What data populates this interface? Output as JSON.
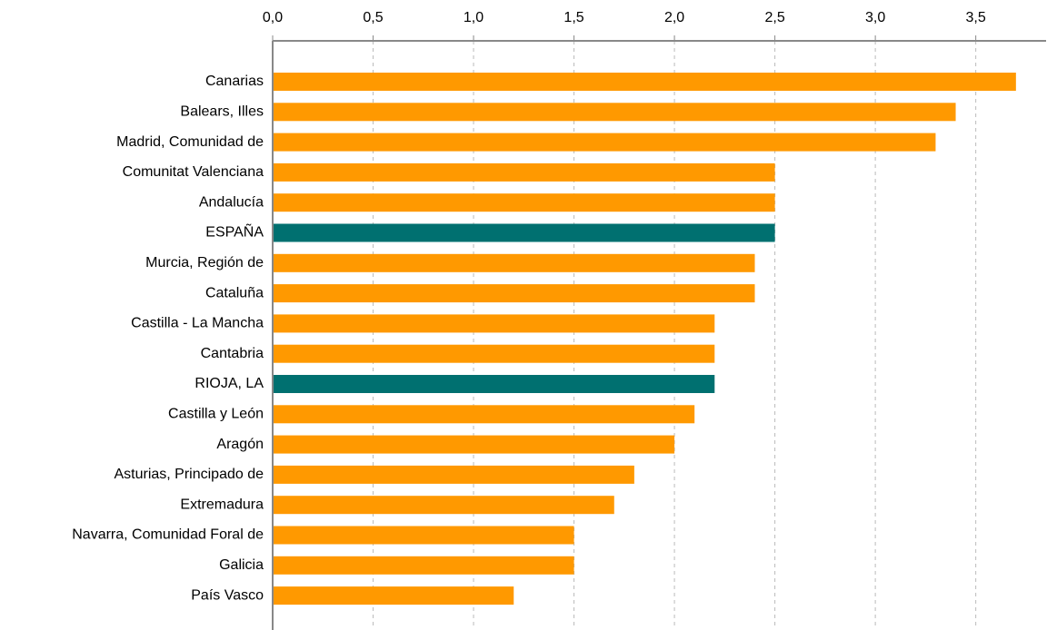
{
  "chart_data": {
    "type": "barh",
    "categories": [
      "Canarias",
      "Balears, Illes",
      "Madrid, Comunidad de",
      "Comunitat Valenciana",
      "Andalucía",
      "ESPAÑA",
      "Murcia, Región de",
      "Cataluña",
      "Castilla - La Mancha",
      "Cantabria",
      "RIOJA, LA",
      "Castilla y León",
      "Aragón",
      "Asturias, Principado de",
      "Extremadura",
      "Navarra, Comunidad Foral de",
      "Galicia",
      "País Vasco"
    ],
    "values": [
      3.7,
      3.4,
      3.3,
      2.5,
      2.5,
      2.5,
      2.4,
      2.4,
      2.2,
      2.2,
      2.2,
      2.1,
      2.0,
      1.8,
      1.7,
      1.5,
      1.5,
      1.2
    ],
    "colors": [
      "#ff9900",
      "#ff9900",
      "#ff9900",
      "#ff9900",
      "#ff9900",
      "#007070",
      "#ff9900",
      "#ff9900",
      "#ff9900",
      "#ff9900",
      "#007070",
      "#ff9900",
      "#ff9900",
      "#ff9900",
      "#ff9900",
      "#ff9900",
      "#ff9900",
      "#ff9900"
    ],
    "xlim": [
      0,
      3.85
    ],
    "xticks": [
      {
        "value": 0,
        "label": "0,0"
      },
      {
        "value": 0.5,
        "label": "0,5"
      },
      {
        "value": 1,
        "label": "1,0"
      },
      {
        "value": 1.5,
        "label": "1,5"
      },
      {
        "value": 2,
        "label": "2,0"
      },
      {
        "value": 2.5,
        "label": "2,5"
      },
      {
        "value": 3,
        "label": "3,0"
      },
      {
        "value": 3.5,
        "label": "3,5"
      }
    ],
    "grid": true
  }
}
